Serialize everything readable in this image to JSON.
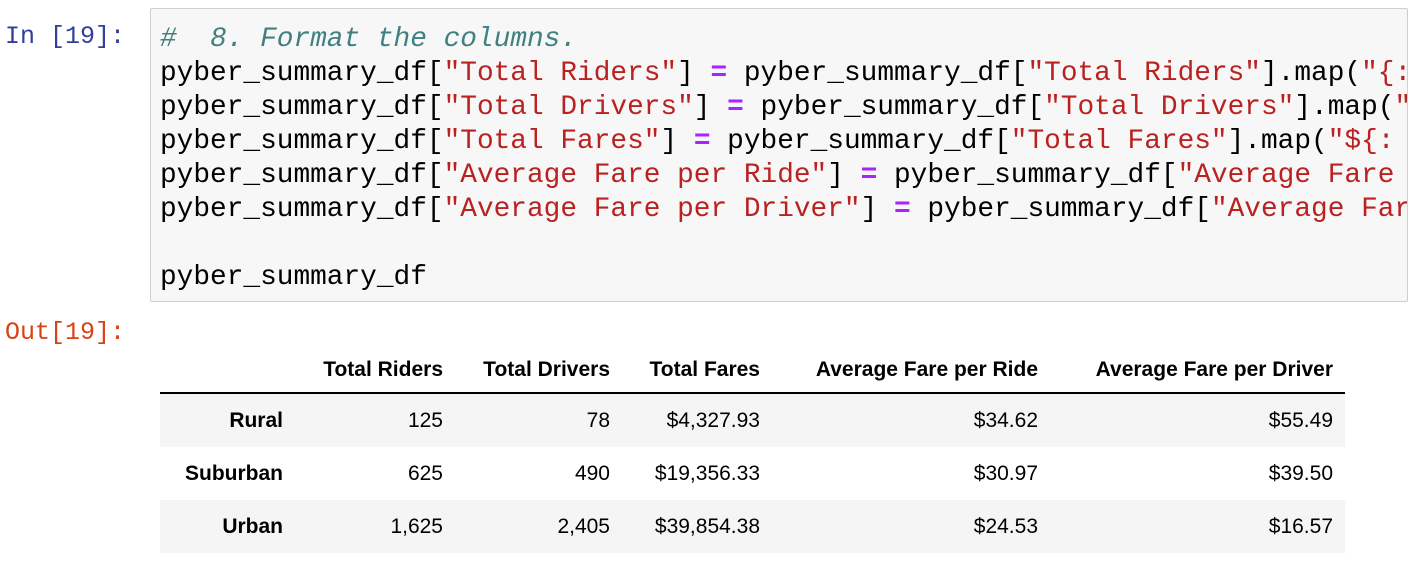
{
  "input_prompt": "In [19]:",
  "code": {
    "lines": [
      [
        "#  8. Format the columns."
      ],
      [
        "pyber_summary_df[",
        "\"Total Riders\"",
        "] ",
        "=",
        " pyber_summary_df[",
        "\"Total Riders\"",
        "].map(",
        "\"{:"
      ],
      [
        "pyber_summary_df[",
        "\"Total Drivers\"",
        "] ",
        "=",
        " pyber_summary_df[",
        "\"Total Drivers\"",
        "].map(",
        "\""
      ],
      [
        "pyber_summary_df[",
        "\"Total Fares\"",
        "] ",
        "=",
        " pyber_summary_df[",
        "\"Total Fares\"",
        "].map(",
        "\"${:"
      ],
      [
        "pyber_summary_df[",
        "\"Average Fare per Ride\"",
        "] ",
        "=",
        " pyber_summary_df[",
        "\"Average Fare"
      ],
      [
        "pyber_summary_df[",
        "\"Average Fare per Driver\"",
        "] ",
        "=",
        " pyber_summary_df[",
        "\"Average Far"
      ],
      [],
      [
        "pyber_summary_df"
      ]
    ]
  },
  "output_prompt": "Out[19]:",
  "table": {
    "columns": [
      "Total Riders",
      "Total Drivers",
      "Total Fares",
      "Average Fare per Ride",
      "Average Fare per Driver"
    ],
    "rows": [
      [
        "Rural",
        "125",
        "78",
        "$4,327.93",
        "$34.62",
        "$55.49"
      ],
      [
        "Suburban",
        "625",
        "490",
        "$19,356.33",
        "$30.97",
        "$39.50"
      ],
      [
        "Urban",
        "1,625",
        "2,405",
        "$39,854.38",
        "$24.53",
        "$16.57"
      ]
    ]
  }
}
